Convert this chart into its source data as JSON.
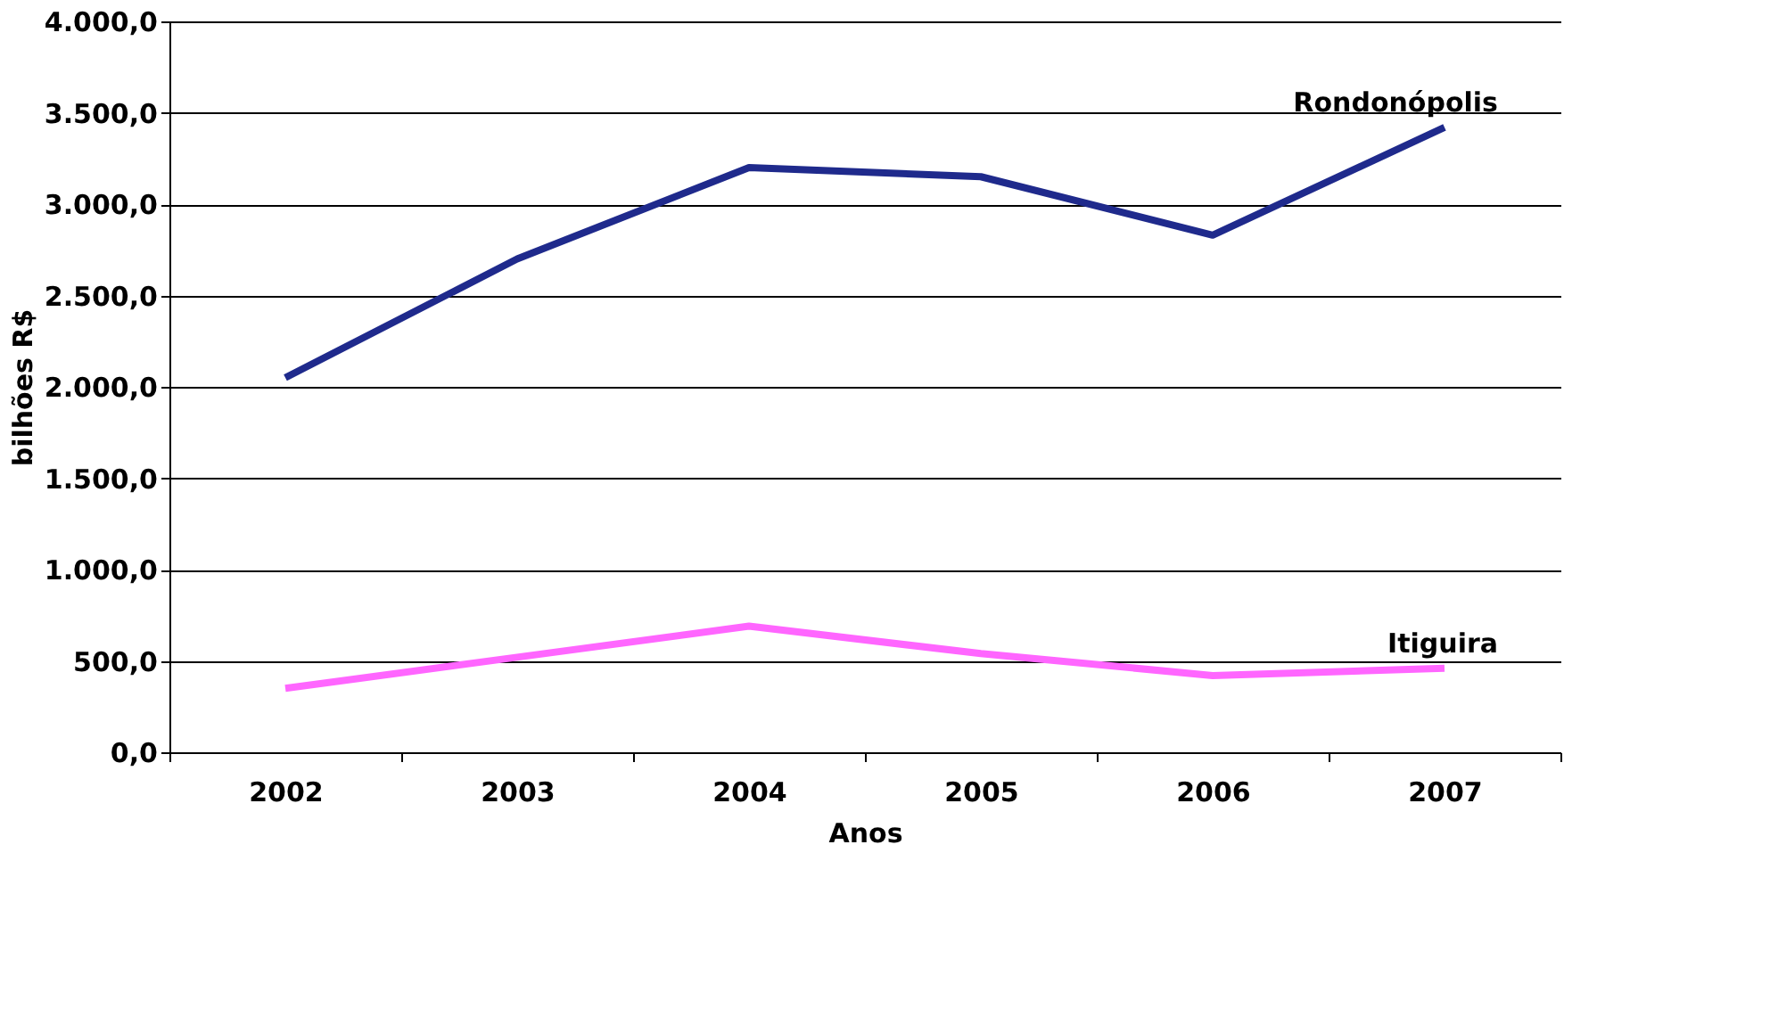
{
  "chart_data": {
    "type": "line",
    "xlabel": "Anos",
    "ylabel": "bilhões R$",
    "categories": [
      "2002",
      "2003",
      "2004",
      "2005",
      "2006",
      "2007"
    ],
    "series": [
      {
        "name": "Rondonópolis",
        "color": "#1f2a8c",
        "values": [
          2050,
          2700,
          3200,
          3150,
          2830,
          3420
        ]
      },
      {
        "name": "Itiguira",
        "color": "#ff66ff",
        "values": [
          350,
          520,
          690,
          540,
          420,
          460
        ]
      }
    ],
    "ylim": [
      0,
      4000
    ],
    "yticks": [
      {
        "value": 0,
        "label": "0,0"
      },
      {
        "value": 500,
        "label": "500,0"
      },
      {
        "value": 1000,
        "label": "1.000,0"
      },
      {
        "value": 1500,
        "label": "1.500,0"
      },
      {
        "value": 2000,
        "label": "2.000,0"
      },
      {
        "value": 2500,
        "label": "2.500,0"
      },
      {
        "value": 3000,
        "label": "3.000,0"
      },
      {
        "value": 3500,
        "label": "3.500,0"
      },
      {
        "value": 4000,
        "label": "4.000,0"
      }
    ],
    "grid": "y",
    "line_style": "solid"
  }
}
